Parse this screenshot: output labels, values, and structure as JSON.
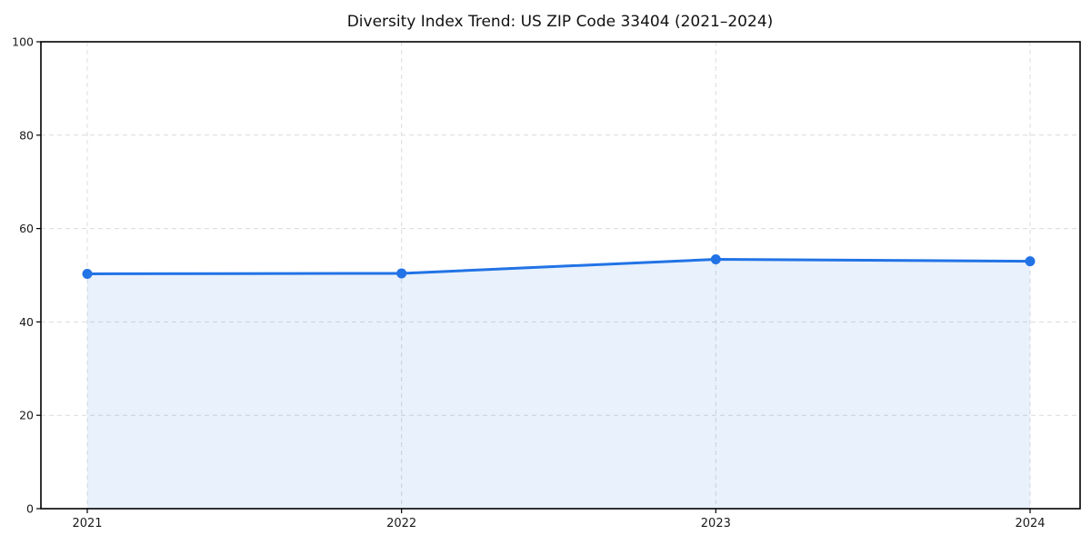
{
  "chart_data": {
    "type": "area",
    "title": "Diversity Index Trend: US ZIP Code 33404 (2021–2024)",
    "x": [
      2021,
      2022,
      2023,
      2024
    ],
    "values": [
      50.3,
      50.4,
      53.4,
      53.0
    ],
    "xlabel": "",
    "ylabel": "",
    "xlim": [
      2021,
      2024
    ],
    "ylim": [
      0,
      100
    ],
    "xticks": [
      "2021",
      "2022",
      "2023",
      "2024"
    ],
    "yticks": [
      0,
      20,
      40,
      60,
      80,
      100
    ],
    "grid": true,
    "grid_style": "dashed",
    "legend_position": "none",
    "colors": {
      "line": "#2273e6",
      "marker": "#2273e6",
      "fill": "#2273e6",
      "fill_opacity": 0.1,
      "grid": "#dcdcdc",
      "axis": "#000000",
      "tick_label": "#1a1a1a",
      "title": "#111111",
      "background": "#ffffff"
    }
  }
}
